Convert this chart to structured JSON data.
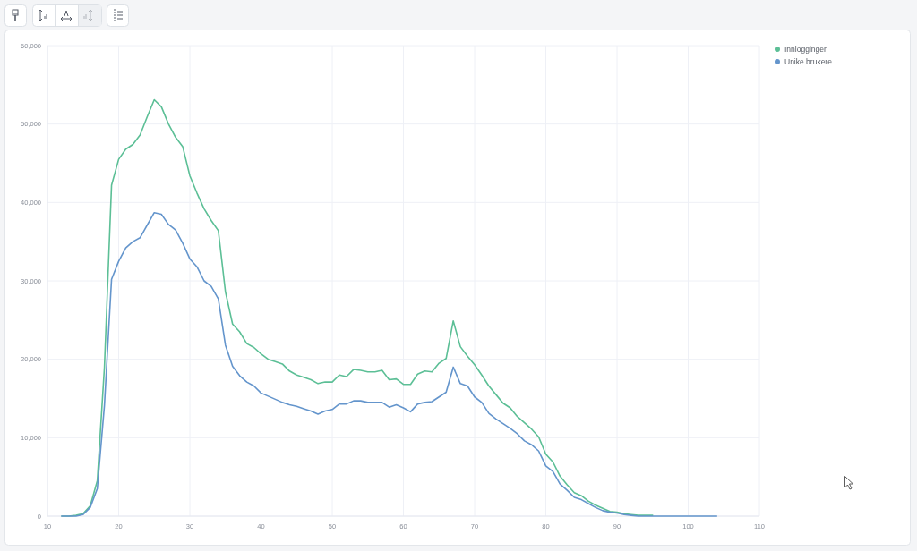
{
  "chart_data": {
    "type": "line",
    "x": [
      12,
      13,
      14,
      15,
      16,
      17,
      18,
      19,
      20,
      21,
      22,
      23,
      24,
      25,
      26,
      27,
      28,
      29,
      30,
      31,
      32,
      33,
      34,
      35,
      36,
      37,
      38,
      39,
      40,
      41,
      42,
      43,
      44,
      45,
      46,
      47,
      48,
      49,
      50,
      51,
      52,
      53,
      54,
      55,
      56,
      57,
      58,
      59,
      60,
      61,
      62,
      63,
      64,
      65,
      66,
      67,
      68,
      69,
      70,
      71,
      72,
      73,
      74,
      75,
      76,
      77,
      78,
      79,
      80,
      81,
      82,
      83,
      84,
      85,
      86,
      87,
      88,
      89,
      90,
      91,
      92,
      93,
      94,
      95,
      96,
      97,
      98,
      99,
      100,
      101,
      102,
      103,
      104
    ],
    "series": [
      {
        "name": "Innlogginger",
        "color": "#5cbf96",
        "values": [
          0,
          0,
          100,
          300,
          1300,
          4500,
          19000,
          42200,
          45500,
          46800,
          47400,
          48600,
          50900,
          53100,
          52200,
          50000,
          48300,
          47100,
          43400,
          41200,
          39200,
          37700,
          36400,
          28600,
          24500,
          23500,
          22000,
          21500,
          20700,
          20000,
          19700,
          19400,
          18500,
          18000,
          17700,
          17400,
          16900,
          17100,
          17100,
          18000,
          17800,
          18700,
          18600,
          18400,
          18400,
          18600,
          17400,
          17500,
          16800,
          16800,
          18100,
          18500,
          18400,
          19500,
          20100,
          24900,
          21600,
          20400,
          19300,
          18000,
          16600,
          15500,
          14400,
          13800,
          12700,
          11900,
          11100,
          10100,
          7900,
          6900,
          5100,
          4000,
          3000,
          2600,
          1900,
          1400,
          1000,
          600,
          500,
          300,
          200,
          100,
          100,
          100,
          null,
          null,
          null,
          null,
          null,
          null,
          null,
          null,
          null
        ]
      },
      {
        "name": "Unike brukere",
        "color": "#6495cc",
        "values": [
          0,
          0,
          0,
          200,
          1100,
          3500,
          14100,
          30200,
          32500,
          34200,
          35000,
          35500,
          37100,
          38700,
          38500,
          37200,
          36500,
          34800,
          32800,
          31800,
          30000,
          29300,
          27700,
          21800,
          19100,
          17900,
          17100,
          16600,
          15700,
          15300,
          14900,
          14500,
          14200,
          14000,
          13700,
          13400,
          13000,
          13400,
          13600,
          14300,
          14300,
          14700,
          14700,
          14500,
          14500,
          14500,
          13900,
          14200,
          13800,
          13300,
          14300,
          14500,
          14600,
          15200,
          15800,
          19000,
          16900,
          16600,
          15200,
          14500,
          13100,
          12400,
          11800,
          11200,
          10500,
          9600,
          9100,
          8300,
          6400,
          5700,
          4100,
          3300,
          2400,
          2100,
          1600,
          1100,
          700,
          500,
          400,
          200,
          100,
          0,
          0,
          0,
          0,
          0,
          0,
          0,
          0,
          0,
          0,
          0,
          0
        ]
      }
    ],
    "xlim": [
      10,
      110
    ],
    "xticks": [
      10,
      20,
      30,
      40,
      50,
      60,
      70,
      80,
      90,
      100,
      110
    ],
    "ylim": [
      0,
      60000
    ],
    "yticks": [
      0,
      {
        "value": 10000,
        "label": "10,000"
      },
      {
        "value": 20000,
        "label": "20,000"
      },
      {
        "value": 30000,
        "label": "30,000"
      },
      {
        "value": 40000,
        "label": "40,000"
      },
      {
        "value": 50000,
        "label": "50,000"
      },
      {
        "value": 60000,
        "label": "60,000"
      }
    ],
    "grid": true,
    "legend": "top right"
  }
}
